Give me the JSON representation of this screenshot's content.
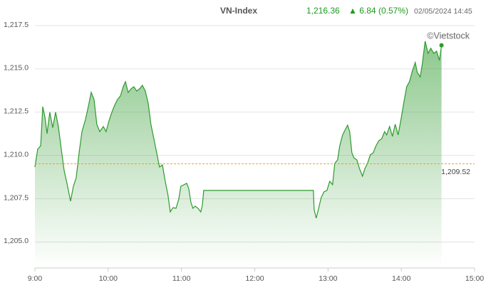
{
  "chart_data": {
    "type": "area",
    "header": {
      "index_name": "VN-Index",
      "price": "1,216.36",
      "change": "▲ 6.84",
      "change_pct": "(0.57%)",
      "timestamp": "02/05/2024 14:45"
    },
    "source": "©Vietstock",
    "color": "#2e9a2e",
    "reference": {
      "value": 1209.52,
      "label": "1,209.52",
      "color": "#e8a020"
    },
    "x": [
      0,
      2.3,
      4.7,
      6.4,
      8.2,
      9.9,
      12.2,
      14.6,
      16.9,
      19.2,
      21.6,
      23.9,
      26.2,
      29.2,
      31.5,
      33.8,
      36.2,
      38.5,
      41.4,
      43.7,
      46.1,
      48.4,
      50.7,
      53.1,
      56,
      58.3,
      60.6,
      63,
      65.3,
      67.6,
      70,
      72.3,
      74.1,
      76.4,
      78.7,
      81,
      83.4,
      85.7,
      88,
      90.4,
      92.7,
      95,
      97.4,
      99.7,
      102,
      104.4,
      106.7,
      109,
      110.8,
      113.1,
      115.5,
      117.8,
      119.5,
      121.9,
      124.2,
      125.9,
      127.7,
      129.4,
      131.2,
      133.5,
      135.8,
      137,
      138.2,
      228,
      228.6,
      230.3,
      232.1,
      234.4,
      236.7,
      239.1,
      241.4,
      243.7,
      245.5,
      247.8,
      249.6,
      251.9,
      254.2,
      256,
      257.7,
      259.5,
      261.2,
      263.6,
      265.9,
      268.2,
      270,
      272.3,
      274.6,
      277,
      279.3,
      281.6,
      284,
      286.3,
      288,
      290.4,
      292.7,
      295,
      297.4,
      299.7,
      302,
      304.4,
      306.7,
      309,
      311.4,
      313.1,
      315.5,
      317.2,
      319.5,
      321.9,
      324.2,
      326.5,
      328.9,
      331.2,
      332.9
    ],
    "values": [
      1209.33,
      1210.36,
      1210.56,
      1212.82,
      1212.2,
      1211.26,
      1212.5,
      1211.6,
      1212.5,
      1211.67,
      1210.36,
      1209.13,
      1208.4,
      1207.36,
      1208.22,
      1208.7,
      1210.15,
      1211.38,
      1212.08,
      1212.82,
      1213.64,
      1213.23,
      1211.79,
      1211.38,
      1211.67,
      1211.38,
      1212.0,
      1212.5,
      1212.9,
      1213.23,
      1213.44,
      1213.97,
      1214.26,
      1213.64,
      1213.85,
      1213.97,
      1213.72,
      1213.85,
      1214.05,
      1213.72,
      1213.03,
      1211.79,
      1210.97,
      1210.15,
      1209.33,
      1209.45,
      1208.5,
      1207.69,
      1206.74,
      1206.98,
      1206.95,
      1207.48,
      1208.22,
      1208.3,
      1208.39,
      1208.1,
      1207.28,
      1206.95,
      1207.07,
      1206.95,
      1206.74,
      1207.07,
      1207.98,
      1207.98,
      1206.87,
      1206.38,
      1206.87,
      1207.57,
      1207.9,
      1207.98,
      1208.51,
      1208.31,
      1209.54,
      1209.74,
      1210.56,
      1211.18,
      1211.51,
      1211.75,
      1211.38,
      1210.15,
      1209.86,
      1209.74,
      1209.21,
      1208.8,
      1209.21,
      1209.54,
      1210.03,
      1210.15,
      1210.56,
      1210.85,
      1210.97,
      1211.38,
      1211.18,
      1211.67,
      1211.1,
      1211.8,
      1211.18,
      1212.08,
      1213.03,
      1213.97,
      1214.26,
      1214.87,
      1215.37,
      1214.79,
      1214.54,
      1215.28,
      1216.6,
      1215.9,
      1216.19,
      1215.9,
      1216.02,
      1215.49,
      1216.36
    ],
    "xlim": [
      0,
      360
    ],
    "xticks": [
      {
        "value": 0,
        "label": "9:00"
      },
      {
        "value": 60,
        "label": "10:00"
      },
      {
        "value": 120,
        "label": "11:00"
      },
      {
        "value": 180,
        "label": "12:00"
      },
      {
        "value": 240,
        "label": "13:00"
      },
      {
        "value": 300,
        "label": "14:00"
      },
      {
        "value": 360,
        "label": "15:00"
      }
    ],
    "ylim": [
      1203.5,
      1217.5
    ],
    "yticks": [
      {
        "value": 1205,
        "label": "1,205.0"
      },
      {
        "value": 1207.5,
        "label": "1,207.5"
      },
      {
        "value": 1210,
        "label": "1,210.0"
      },
      {
        "value": 1212.5,
        "label": "1,212.5"
      },
      {
        "value": 1215,
        "label": "1,215.0"
      },
      {
        "value": 1217.5,
        "label": "1,217.5"
      }
    ],
    "grid": true
  }
}
